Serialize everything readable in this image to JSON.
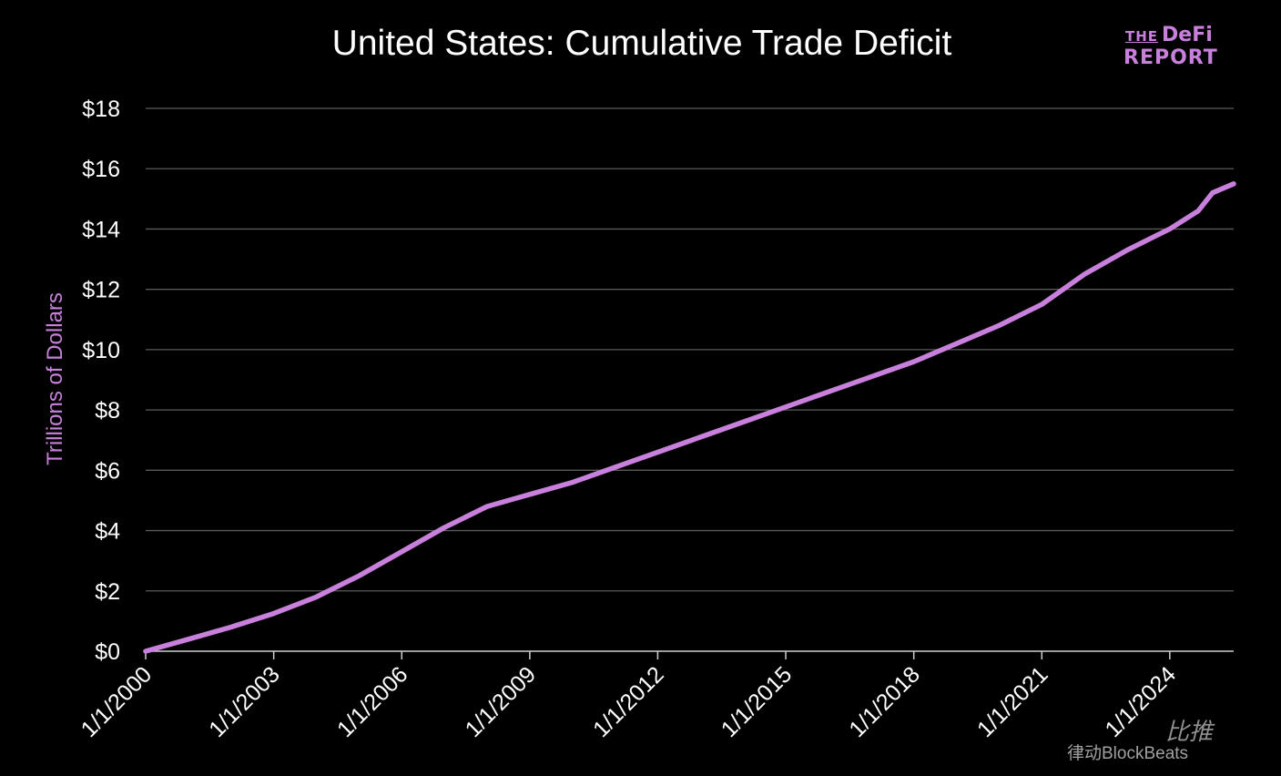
{
  "chart_data": {
    "type": "line",
    "title": "United States: Cumulative Trade Deficit",
    "ylabel": "Trillions of Dollars",
    "xlabel": "",
    "ylim": [
      0,
      18
    ],
    "xlim": [
      "2000-01-01",
      "2025-07-01"
    ],
    "y_ticks": [
      0,
      2,
      4,
      6,
      8,
      10,
      12,
      14,
      16,
      18
    ],
    "y_tick_labels": [
      "$0",
      "$2",
      "$4",
      "$6",
      "$8",
      "$10",
      "$12",
      "$14",
      "$16",
      "$18"
    ],
    "x_tick_labels": [
      "1/1/2000",
      "1/1/2003",
      "1/1/2006",
      "1/1/2009",
      "1/1/2012",
      "1/1/2015",
      "1/1/2018",
      "1/1/2021",
      "1/1/2024"
    ],
    "grid": "horizontal",
    "line_color": "#c880dc",
    "series": [
      {
        "x": [
          "2000-01-01",
          "2001-01-01",
          "2002-01-01",
          "2003-01-01",
          "2004-01-01",
          "2005-01-01",
          "2006-01-01",
          "2007-01-01",
          "2008-01-01",
          "2008-10-01",
          "2009-01-01",
          "2010-01-01",
          "2011-01-01",
          "2012-01-01",
          "2013-01-01",
          "2014-01-01",
          "2015-01-01",
          "2016-01-01",
          "2017-01-01",
          "2018-01-01",
          "2019-01-01",
          "2020-01-01",
          "2021-01-01",
          "2022-01-01",
          "2023-01-01",
          "2024-01-01",
          "2024-09-01",
          "2025-01-01",
          "2025-07-01"
        ],
        "values": [
          0,
          0.4,
          0.8,
          1.25,
          1.8,
          2.5,
          3.3,
          4.1,
          4.8,
          5.1,
          5.2,
          5.6,
          6.1,
          6.6,
          7.1,
          7.6,
          8.1,
          8.6,
          9.1,
          9.6,
          10.2,
          10.8,
          11.5,
          12.5,
          13.3,
          14.0,
          14.6,
          15.2,
          15.5
        ]
      }
    ]
  },
  "logo": {
    "line1_small": "THE",
    "line1_big": "DeFi",
    "line2": "REPORT"
  },
  "watermark": {
    "brand": "律动BlockBeats",
    "secondary": "比推"
  }
}
